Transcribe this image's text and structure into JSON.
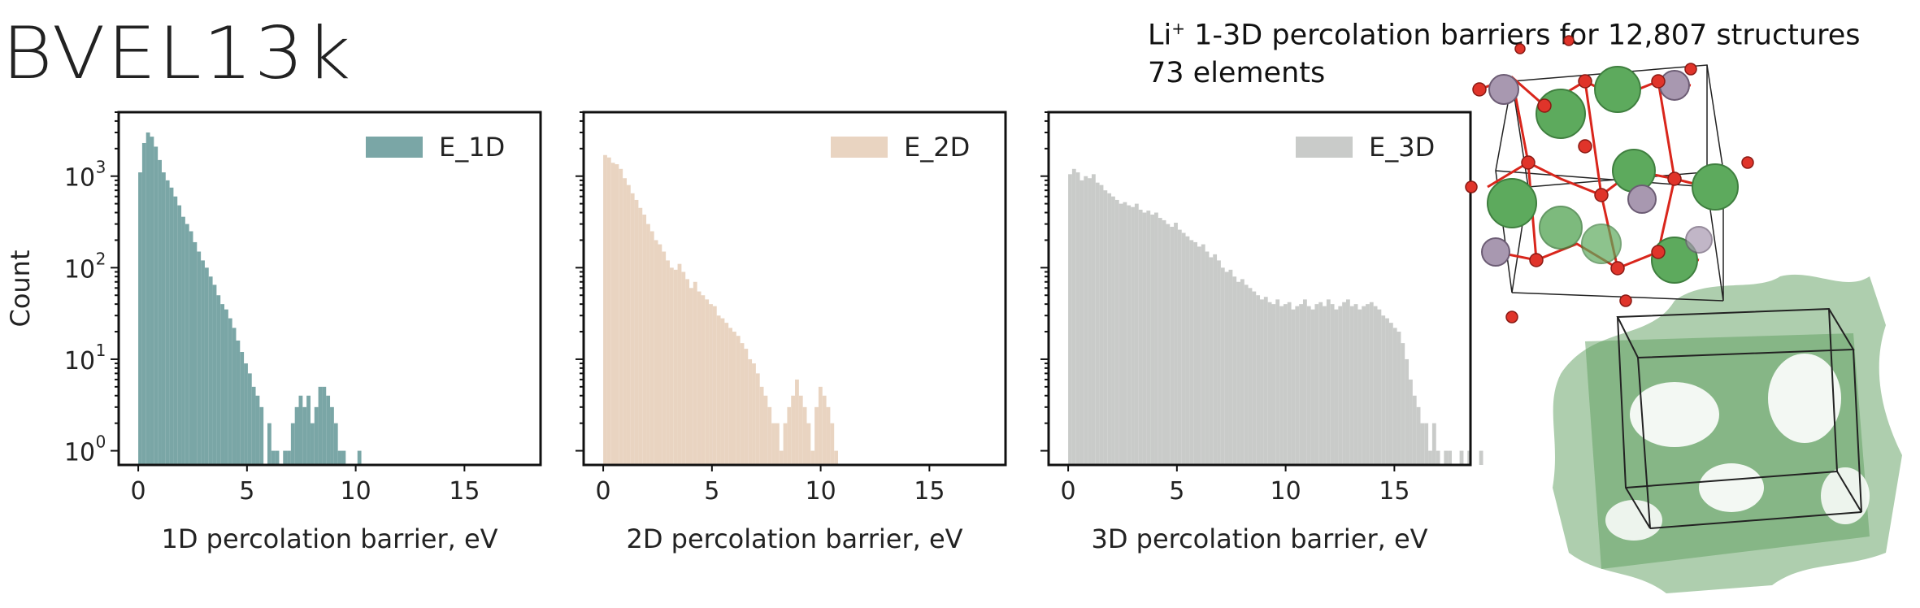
{
  "header": {
    "title": "BVEL13k",
    "subtitle_li": "Li",
    "subtitle_sup": "+",
    "subtitle_line1_rest": " 1-3D percolation barriers for 12,807 structures",
    "subtitle_line2": "73 elements"
  },
  "chart_data": [
    {
      "type": "bar",
      "ylabel": "Count",
      "xlabel": "1D percolation barrier, eV",
      "legend": "E_1D",
      "legend_position": "top-right",
      "color": "#7AA6A6",
      "yscale": "log",
      "xlim": [
        -0.9,
        18.5
      ],
      "ylim": [
        0.7,
        5000
      ],
      "xticks": [
        0,
        5,
        10,
        15
      ],
      "yticks": [
        "10^0",
        "10^1",
        "10^2",
        "10^3"
      ],
      "bin_width": 0.18,
      "bins_start": 0.0,
      "values": [
        1100,
        2300,
        3000,
        2700,
        2100,
        1500,
        1100,
        900,
        750,
        600,
        480,
        360,
        300,
        250,
        190,
        150,
        120,
        100,
        80,
        65,
        50,
        40,
        35,
        28,
        22,
        16,
        12,
        9,
        7,
        5,
        4,
        3,
        0,
        2,
        1,
        1,
        0,
        1,
        1,
        2,
        3,
        4,
        3,
        4,
        2,
        3,
        5,
        5,
        4,
        3,
        2,
        1,
        1,
        0,
        0,
        0,
        1
      ]
    },
    {
      "type": "bar",
      "xlabel": "2D percolation barrier, eV",
      "legend": "E_2D",
      "legend_position": "top-right",
      "color": "#E9D4C1",
      "yscale": "log",
      "xlim": [
        -0.9,
        18.5
      ],
      "ylim": [
        0.7,
        5000
      ],
      "xticks": [
        0,
        5,
        10,
        15
      ],
      "bin_width": 0.18,
      "bins_start": 0.0,
      "values": [
        1700,
        1600,
        1400,
        1350,
        1200,
        950,
        800,
        650,
        550,
        450,
        380,
        300,
        250,
        200,
        180,
        150,
        120,
        100,
        95,
        110,
        90,
        75,
        60,
        70,
        55,
        50,
        45,
        40,
        38,
        30,
        28,
        25,
        22,
        20,
        18,
        15,
        13,
        10,
        9,
        7,
        5,
        4,
        3,
        2,
        2,
        1,
        2,
        3,
        4,
        6,
        4,
        3,
        2,
        1,
        3,
        5,
        4,
        3,
        2,
        1,
        0
      ]
    },
    {
      "type": "bar",
      "xlabel": "3D percolation barrier, eV",
      "legend": "E_3D",
      "legend_position": "top-right",
      "color": "#C9CBC9",
      "yscale": "log",
      "xlim": [
        -0.9,
        18.5
      ],
      "ylim": [
        0.7,
        5000
      ],
      "xticks": [
        0,
        5,
        10,
        15
      ],
      "bin_width": 0.18,
      "bins_start": 0.0,
      "values": [
        1050,
        1200,
        1100,
        900,
        1000,
        950,
        1050,
        850,
        800,
        700,
        650,
        600,
        550,
        500,
        520,
        480,
        460,
        500,
        430,
        400,
        420,
        380,
        400,
        350,
        330,
        300,
        280,
        310,
        260,
        240,
        220,
        200,
        190,
        170,
        180,
        150,
        130,
        140,
        120,
        100,
        90,
        95,
        80,
        70,
        75,
        65,
        60,
        55,
        50,
        45,
        48,
        42,
        40,
        45,
        38,
        40,
        42,
        35,
        38,
        40,
        45,
        38,
        35,
        40,
        42,
        38,
        45,
        40,
        35,
        38,
        42,
        45,
        38,
        40,
        35,
        38,
        40,
        42,
        38,
        35,
        30,
        28,
        25,
        22,
        20,
        15,
        10,
        6,
        4,
        3,
        2,
        2,
        1,
        2,
        1,
        0,
        1,
        1,
        0,
        0,
        1,
        0,
        1,
        0,
        0,
        1,
        0,
        0,
        1,
        0,
        1,
        0,
        0,
        0,
        1,
        0,
        0,
        0,
        0,
        1,
        0,
        0,
        0,
        1
      ]
    }
  ],
  "colors": {
    "li_atom": "#5DAA5D",
    "o_atom": "#D9261C",
    "p_atom": "#A898B0",
    "surface": "#5E9E5E",
    "frame": "#222222"
  }
}
